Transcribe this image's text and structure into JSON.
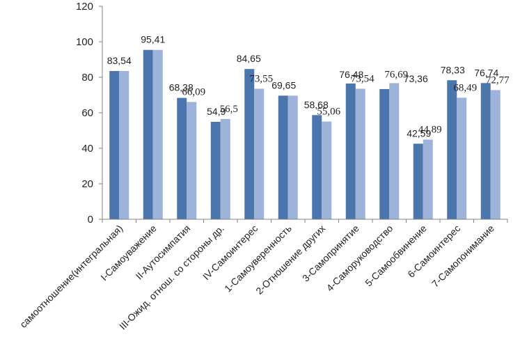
{
  "chart_data": {
    "type": "bar",
    "title": "",
    "xlabel": "",
    "ylabel": "",
    "ylim": [
      0,
      120
    ],
    "yticks": [
      0,
      20,
      40,
      60,
      80,
      100,
      120
    ],
    "grid": false,
    "legend": "none",
    "categories": [
      "самоотношение(интегральная)",
      "I-Самоуважение",
      "II-Аутосимпатия",
      "III-Ожид. отнош. со стороны др.",
      "IV-Самоинтерес",
      "1-Самоуверенность",
      "2-Отношение других",
      "3-Самопринятие",
      "4-Саморуководство",
      "5-Самообвинение",
      "6-Самоинтерес",
      "7-Самопонимание"
    ],
    "series": [
      {
        "color": "#4a76ad",
        "values": [
          83.54,
          95.41,
          68.38,
          54.9,
          84.65,
          69.65,
          58.68,
          76.48,
          73.36,
          42.59,
          78.33,
          76.74
        ],
        "labels": [
          "83,54",
          "95,41",
          "68,38",
          "54,9",
          "84,65",
          "69,65",
          "58,68",
          "76,48",
          "",
          "42,59",
          "78,33",
          "76,74"
        ]
      },
      {
        "color": "#9db3da",
        "values": [
          83.54,
          95.41,
          66.09,
          56.5,
          73.55,
          69.65,
          55.06,
          73.54,
          76.69,
          44.89,
          68.49,
          72.77
        ],
        "labels": [
          "",
          "",
          "66,09",
          "56,5",
          "73,55",
          "",
          "55,06",
          "73,54",
          "76,69",
          "44,89",
          "68,49",
          "72,77"
        ]
      }
    ],
    "extra_labels": [
      {
        "text": "73,36",
        "category": 8
      }
    ]
  }
}
